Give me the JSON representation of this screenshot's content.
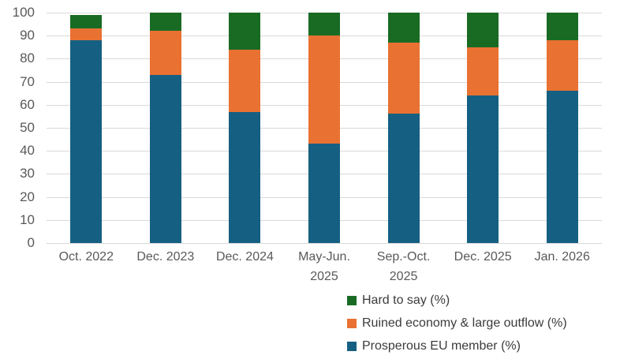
{
  "chart_data": {
    "type": "bar",
    "stacked": true,
    "categories": [
      "Oct. 2022",
      "Dec. 2023",
      "Dec. 2024",
      "May-Jun. 2025",
      "Sep.-Oct. 2025",
      "Dec. 2025",
      "Jan. 2026"
    ],
    "series": [
      {
        "name": "Prosperous EU member (%)",
        "color": "#156082",
        "values": [
          88,
          73,
          57,
          43,
          56,
          64,
          66
        ]
      },
      {
        "name": "Ruined economy & large outflow (%)",
        "color": "#E97132",
        "values": [
          5,
          19,
          27,
          47,
          31,
          21,
          22
        ]
      },
      {
        "name": "Hard to say (%)",
        "color": "#196B24",
        "values": [
          6,
          8,
          16,
          10,
          13,
          15,
          12
        ]
      }
    ],
    "ylim": [
      0,
      100
    ],
    "yticks": [
      0,
      10,
      20,
      30,
      40,
      50,
      60,
      70,
      80,
      90,
      100
    ],
    "grid": true,
    "legend_position": "bottom-right"
  },
  "colors": {
    "gridline": "#d9d9d9",
    "axis_text": "#595959",
    "legend_text": "#3b3b3b",
    "background": "#ffffff"
  }
}
